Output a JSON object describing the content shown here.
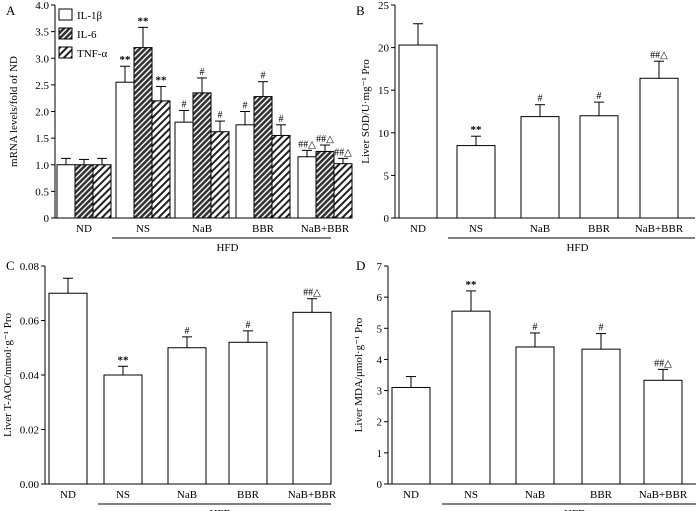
{
  "chart_data": [
    {
      "panel": "A",
      "type": "bar",
      "ylabel": "mRNA levels/fold of ND",
      "ylim": [
        0,
        4.0
      ],
      "yticks": [
        0,
        0.5,
        1.0,
        1.5,
        2.0,
        2.5,
        3.0,
        3.5,
        4.0
      ],
      "ytick_labels": [
        "0",
        "0.5",
        "1.0",
        "1.5",
        "2.0",
        "2.5",
        "3.0",
        "3.5",
        "4.0"
      ],
      "categories": [
        "ND",
        "NS",
        "NaB",
        "BBR",
        "NaB+BBR"
      ],
      "group_label": "HFD",
      "group_members": [
        "NS",
        "NaB",
        "BBR",
        "NaB+BBR"
      ],
      "legend": [
        "IL-1β",
        "IL-6",
        "TNF-α"
      ],
      "series": [
        {
          "name": "IL-1β",
          "pattern": "white",
          "values": [
            1.0,
            2.55,
            1.8,
            1.75,
            1.15
          ],
          "errors": [
            0.12,
            0.3,
            0.22,
            0.25,
            0.12
          ],
          "labels": [
            "",
            "**",
            "#",
            "#",
            "##△"
          ]
        },
        {
          "name": "IL-6",
          "pattern": "dark-hatch",
          "values": [
            1.0,
            3.2,
            2.35,
            2.28,
            1.25
          ],
          "errors": [
            0.1,
            0.38,
            0.28,
            0.28,
            0.12
          ],
          "labels": [
            "",
            "**",
            "#",
            "#",
            "##△"
          ]
        },
        {
          "name": "TNF-α",
          "pattern": "hatch",
          "values": [
            1.0,
            2.2,
            1.62,
            1.55,
            1.02
          ],
          "errors": [
            0.12,
            0.27,
            0.2,
            0.2,
            0.1
          ],
          "labels": [
            "",
            "**",
            "#",
            "#",
            "##△"
          ]
        }
      ]
    },
    {
      "panel": "B",
      "type": "bar",
      "ylabel": "Liver SOD/U·mg⁻¹ Pro",
      "ylim": [
        0,
        25
      ],
      "yticks": [
        0,
        5,
        10,
        15,
        20,
        25
      ],
      "ytick_labels": [
        "0",
        "5",
        "10",
        "15",
        "20",
        "25"
      ],
      "categories": [
        "ND",
        "NS",
        "NaB",
        "BBR",
        "NaB+BBR"
      ],
      "group_label": "HFD",
      "values": [
        20.3,
        8.5,
        11.9,
        12.0,
        16.4
      ],
      "errors": [
        2.5,
        1.1,
        1.4,
        1.6,
        2.0
      ],
      "labels": [
        "",
        "**",
        "#",
        "#",
        "##△"
      ]
    },
    {
      "panel": "C",
      "type": "bar",
      "ylabel": "Liver T-AOC/mmol·g⁻¹ Pro",
      "ylim": [
        0,
        0.08
      ],
      "yticks": [
        0,
        0.02,
        0.04,
        0.06,
        0.08
      ],
      "ytick_labels": [
        "0.00",
        "0.02",
        "0.04",
        "0.06",
        "0.08"
      ],
      "categories": [
        "ND",
        "NS",
        "NaB",
        "BBR",
        "NaB+BBR"
      ],
      "group_label": "HFD",
      "values": [
        0.07,
        0.04,
        0.05,
        0.052,
        0.063
      ],
      "errors": [
        0.0055,
        0.0032,
        0.004,
        0.0042,
        0.005
      ],
      "labels": [
        "",
        "**",
        "#",
        "#",
        "##△"
      ]
    },
    {
      "panel": "D",
      "type": "bar",
      "ylabel": "Liver MDA/μmol·g⁻¹ Pro",
      "ylim": [
        0,
        7
      ],
      "yticks": [
        0,
        1,
        2,
        3,
        4,
        5,
        6,
        7
      ],
      "ytick_labels": [
        "0",
        "1",
        "2",
        "3",
        "4",
        "5",
        "6",
        "7"
      ],
      "categories": [
        "ND",
        "NS",
        "NaB",
        "BBR",
        "NaB+BBR"
      ],
      "group_label": "HFD",
      "values": [
        3.1,
        5.55,
        4.4,
        4.33,
        3.33
      ],
      "errors": [
        0.35,
        0.65,
        0.45,
        0.5,
        0.35
      ],
      "labels": [
        "",
        "**",
        "#",
        "#",
        "##△"
      ]
    }
  ]
}
